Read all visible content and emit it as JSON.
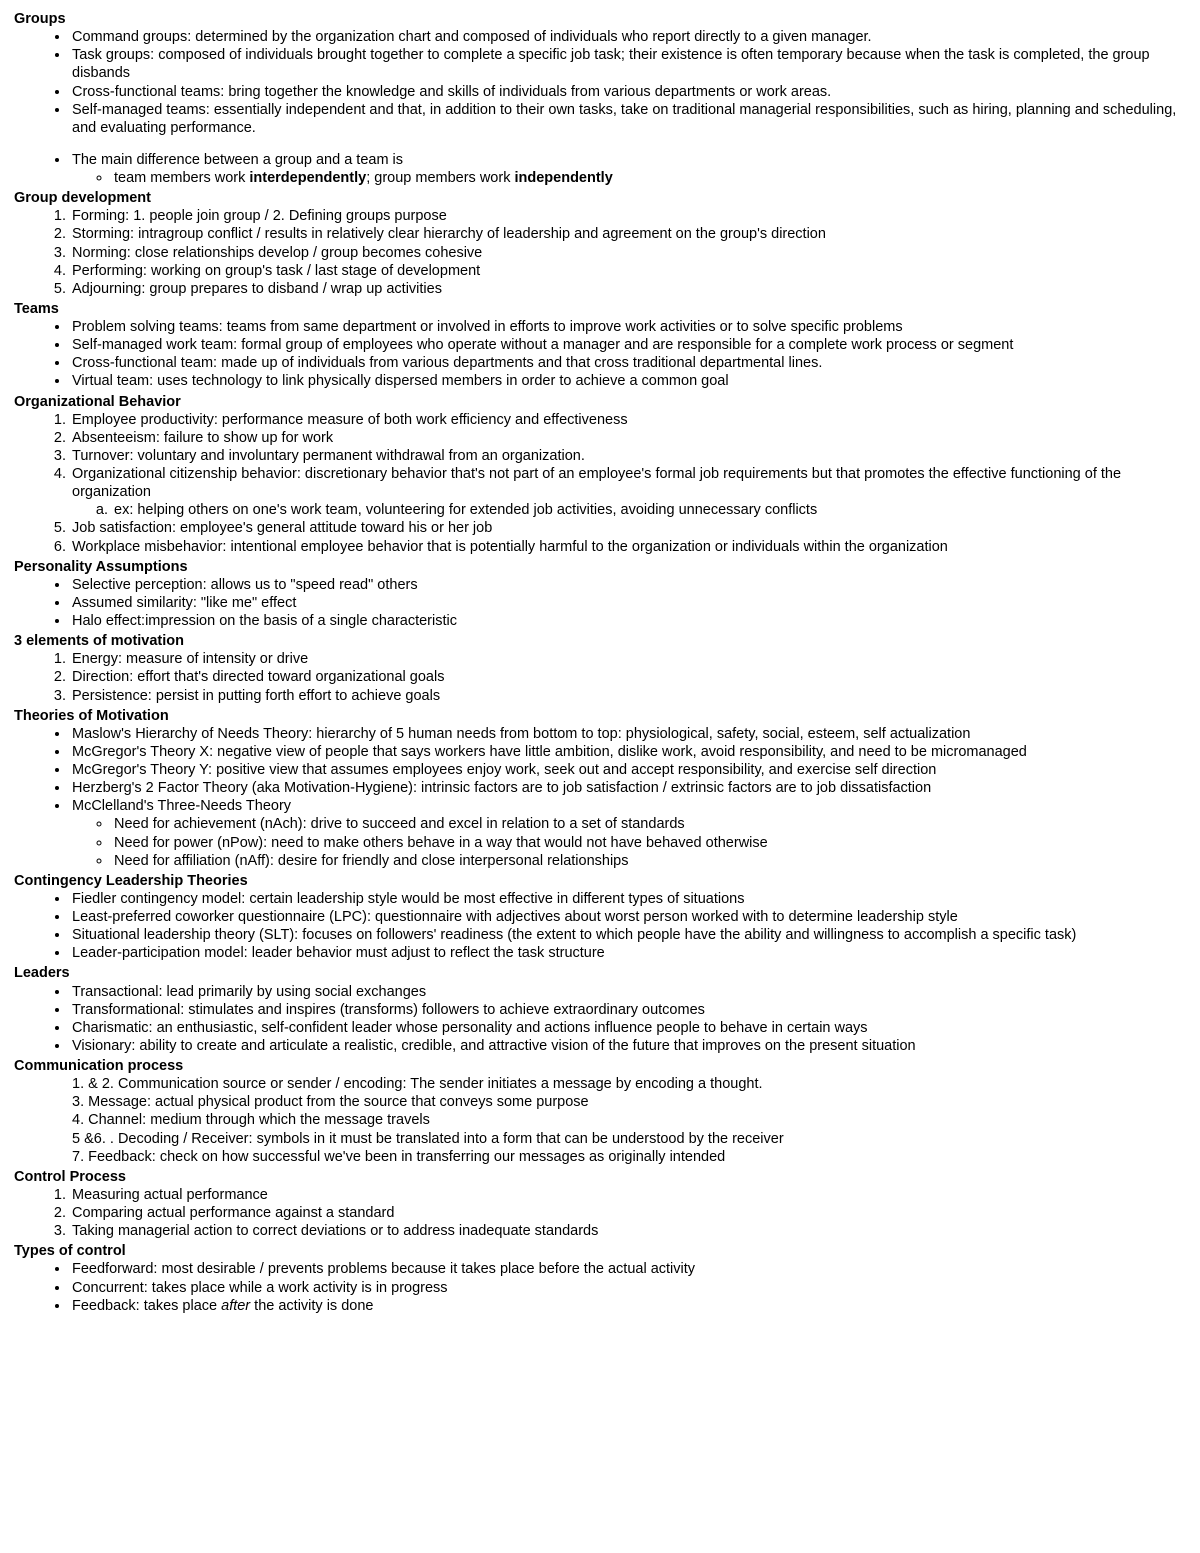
{
  "sections": [
    {
      "heading": "Groups",
      "list_type": "disc",
      "items": [
        {
          "text": "Command groups: determined by the organization chart and composed of individuals who report directly to a given manager."
        },
        {
          "text": "Task groups: composed of individuals brought together to complete a specific job task; their existence is often temporary because when the task is completed, the group disbands"
        },
        {
          "text": "Cross-functional teams: bring together the knowledge and skills of individuals from various departments or work areas."
        },
        {
          "text": "Self-managed teams: essentially independent and that, in addition to their own tasks, take on traditional managerial responsibilities, such as hiring, planning and scheduling, and evaluating performance.",
          "gap_after": true
        },
        {
          "text": "The main difference between a group and a team is",
          "sub_type": "circle",
          "sub": [
            {
              "parts": [
                {
                  "t": "team members work "
                },
                {
                  "t": "interdependently",
                  "b": true
                },
                {
                  "t": "; group members work "
                },
                {
                  "t": "independently",
                  "b": true
                }
              ]
            }
          ]
        }
      ]
    },
    {
      "heading": "Group development",
      "list_type": "num",
      "items": [
        {
          "text": "Forming: 1. people join group / 2. Defining groups purpose"
        },
        {
          "text": "Storming: intragroup conflict / results in relatively clear hierarchy of leadership and agreement on the group's direction"
        },
        {
          "text": "Norming: close relationships develop / group becomes cohesive"
        },
        {
          "text": "Performing: working on group's task / last stage of development"
        },
        {
          "text": "Adjourning: group prepares to disband / wrap up activities"
        }
      ]
    },
    {
      "heading": "Teams",
      "list_type": "disc",
      "items": [
        {
          "text": "Problem solving teams: teams from same department or involved in efforts to improve work activities or to solve specific problems"
        },
        {
          "text": "Self-managed work team: formal group of employees who operate without a manager and are responsible for a complete work process or segment"
        },
        {
          "text": "Cross-functional team: made up of individuals from various departments and that cross traditional departmental lines."
        },
        {
          "text": "Virtual team: uses technology to link physically dispersed members in order to achieve a common goal"
        }
      ]
    },
    {
      "heading": "Organizational Behavior",
      "list_type": "num",
      "items": [
        {
          "text": "Employee productivity: performance measure of both work efficiency and effectiveness"
        },
        {
          "text": "Absenteeism: failure to show up for work"
        },
        {
          "text": "Turnover: voluntary and involuntary permanent withdrawal from an organization."
        },
        {
          "text": "Organizational citizenship behavior: discretionary behavior that's not part of an employee's formal job requirements but that promotes the effective functioning of the organization",
          "sub_type": "alpha",
          "sub": [
            {
              "text": "ex: helping others on one's work team, volunteering for extended job activities, avoiding unnecessary conflicts"
            }
          ]
        },
        {
          "text": "Job satisfaction: employee's general attitude toward his or her job"
        },
        {
          "text": "Workplace misbehavior: intentional employee behavior that is potentially harmful to the organization or individuals within the organization"
        }
      ]
    },
    {
      "heading": "Personality Assumptions",
      "list_type": "disc",
      "items": [
        {
          "text": "Selective perception: allows us to \"speed read\" others"
        },
        {
          "text": "Assumed similarity: \"like me\" effect"
        },
        {
          "text": "Halo effect:impression on the basis of a single characteristic"
        }
      ]
    },
    {
      "heading": "3 elements of motivation",
      "list_type": "num",
      "items": [
        {
          "text": "Energy: measure of intensity or drive"
        },
        {
          "text": "Direction: effort that's directed toward organizational goals"
        },
        {
          "text": "Persistence: persist in putting forth effort to achieve goals"
        }
      ]
    },
    {
      "heading": "Theories of Motivation",
      "list_type": "disc",
      "items": [
        {
          "text": "Maslow's Hierarchy of Needs Theory: hierarchy of 5 human needs from bottom to top: physiological, safety, social, esteem, self actualization"
        },
        {
          "text": "McGregor's Theory X: negative view of people that says workers have little ambition, dislike work, avoid responsibility, and need to be micromanaged"
        },
        {
          "text": "McGregor's Theory Y: positive view that assumes employees enjoy work, seek out and accept responsibility, and exercise self direction"
        },
        {
          "text": "Herzberg's 2 Factor Theory (aka Motivation-Hygiene): intrinsic factors are to job satisfaction / extrinsic factors are to job dissatisfaction"
        },
        {
          "text": "McClelland's Three-Needs Theory",
          "sub_type": "circle",
          "sub": [
            {
              "text": "Need for achievement (nAch): drive to succeed and excel in relation to a set of standards"
            },
            {
              "text": "Need for power (nPow): need to make others behave in a way that would not have behaved otherwise"
            },
            {
              "text": "Need for affiliation (nAff): desire for friendly and close interpersonal relationships"
            }
          ]
        }
      ]
    },
    {
      "heading": "Contingency Leadership Theories",
      "list_type": "disc",
      "items": [
        {
          "text": "Fiedler contingency model: certain leadership style would be most effective in different types of situations"
        },
        {
          "text": "Least-preferred coworker questionnaire (LPC): questionnaire with adjectives about worst person worked with to determine leadership style"
        },
        {
          "text": "Situational leadership theory (SLT): focuses on followers' readiness (the extent to which people have the ability and willingness to accomplish a specific task)"
        },
        {
          "text": "Leader-participation model: leader behavior must adjust to reflect the task structure"
        }
      ]
    },
    {
      "heading": "Leaders",
      "list_type": "disc",
      "items": [
        {
          "text": "Transactional: lead primarily by using social exchanges"
        },
        {
          "text": "Transformational: stimulates and inspires (transforms) followers to achieve extraordinary outcomes"
        },
        {
          "text": "Charismatic: an enthusiastic, self-confident leader whose personality and actions influence people to behave in certain ways"
        },
        {
          "text": "Visionary: ability to create and articulate a realistic, credible, and attractive vision of the future that improves on the present situation"
        }
      ]
    },
    {
      "heading": "Communication process",
      "list_type": "plain",
      "items": [
        {
          "text": "1.    & 2. Communication source or sender / encoding: The sender initiates a message by encoding a thought."
        },
        {
          "text": "3. Message: actual physical product from the source that conveys some purpose"
        },
        {
          "text": "4. Channel: medium through which the message travels"
        },
        {
          "text": "5 &6. . Decoding /  Receiver: symbols in it must be translated into a form that can be understood by the receiver"
        },
        {
          "text": "7. Feedback: check on how successful we've been in transferring our messages as originally intended"
        }
      ]
    },
    {
      "heading": "Control Process",
      "list_type": "num",
      "items": [
        {
          "text": "Measuring actual performance"
        },
        {
          "text": "Comparing actual performance against a standard"
        },
        {
          "text": "Taking managerial action to correct deviations or to address inadequate standards"
        }
      ]
    },
    {
      "heading": "Types of control",
      "list_type": "disc",
      "items": [
        {
          "text": "Feedforward: most desirable / prevents problems because it takes place before the actual activity"
        },
        {
          "text": "Concurrent: takes place while a work activity is in progress"
        },
        {
          "parts": [
            {
              "t": "Feedback: takes place "
            },
            {
              "t": "after",
              "i": true
            },
            {
              "t": " the activity is done"
            }
          ]
        }
      ]
    }
  ]
}
